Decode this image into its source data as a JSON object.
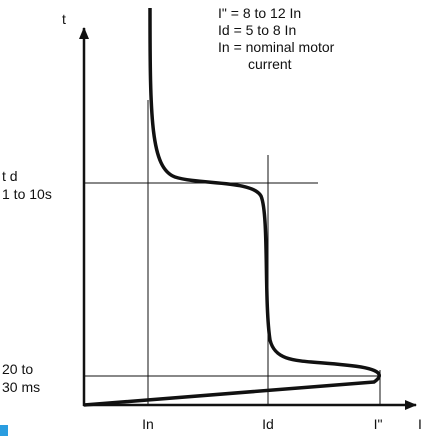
{
  "axes": {
    "y_label": "t",
    "x_label": "I"
  },
  "x_ticks": [
    "In",
    "Id",
    "I\""
  ],
  "y_ticks": [
    {
      "lines": [
        "t d",
        "1 to 10s"
      ]
    },
    {
      "lines": [
        "20 to",
        "30 ms"
      ]
    }
  ],
  "legend": [
    "I\" = 8 to 12 In",
    "Id = 5 to 8 In",
    "In = nominal motor",
    "current"
  ]
}
